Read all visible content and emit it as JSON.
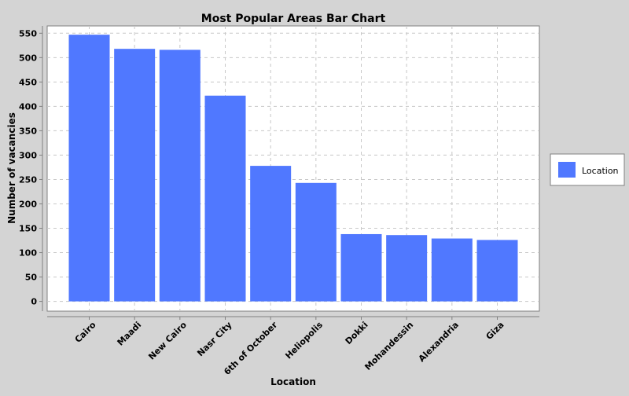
{
  "chart_data": {
    "type": "bar",
    "title": "Most Popular Areas Bar Chart",
    "xlabel": "Location",
    "ylabel": "Number of vacancies",
    "categories": [
      "Cairo",
      "Maadi",
      "New Cairo",
      "Nasr City",
      "6th of October",
      "Heliopolis",
      "Dokki",
      "Mohandessin",
      "Alexandria",
      "Giza"
    ],
    "series": [
      {
        "name": "Location",
        "values": [
          547,
          518,
          516,
          422,
          278,
          243,
          138,
          136,
          129,
          126
        ]
      }
    ],
    "ylim": [
      -20,
      565
    ],
    "yticks": [
      0,
      50,
      100,
      150,
      200,
      250,
      300,
      350,
      400,
      450,
      500,
      550
    ],
    "grid": true,
    "legend_position": "right",
    "colors": {
      "bar": "#5078ff",
      "background": "#d4d4d4",
      "plot_background": "#ffffff",
      "grid": "#c8c8c8"
    }
  }
}
